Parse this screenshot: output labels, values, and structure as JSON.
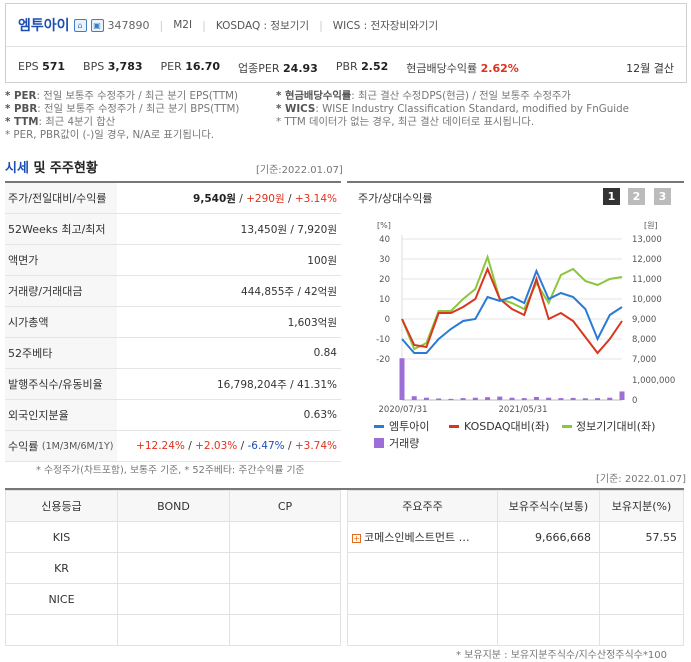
{
  "header": {
    "company_name": "엠투아이",
    "code": "347890",
    "m2i_label": "M2I",
    "market": "KOSDAQ : 정보기기",
    "wics": "WICS : 전자장비와기기",
    "eps_label": "EPS",
    "eps": "571",
    "bps_label": "BPS",
    "bps": "3,783",
    "per_label": "PER",
    "per": "16.70",
    "sector_per_label": "업종PER",
    "sector_per": "24.93",
    "pbr_label": "PBR",
    "pbr": "2.52",
    "div_label": "현금배당수익률",
    "div": "2.62%",
    "settlement": "12월 결산"
  },
  "notes": {
    "per_key": "* PER",
    "per_text": ": 전일 보통주 수정주가 / 최근 분기 EPS(TTM)",
    "pbr_key": "* PBR",
    "pbr_text": ": 전일 보통주 수정주가 / 최근 분기 BPS(TTM)",
    "ttm_key": "* TTM",
    "ttm_text": ": 최근 4분기 합산",
    "neg_text": "* PER, PBR값이 (-)일 경우, N/A로 표기됩니다.",
    "div_key": "* 현금배당수익률",
    "div_text": ": 최근 결산 수정DPS(현금) / 전일 보통주 수정주가",
    "wics_key": "* WICS",
    "wics_text": ": WISE Industry Classification Standard, modified by FnGuide",
    "ttm_none_text": "* TTM 데이터가 없는 경우, 최근 결산 데이터로 표시됩니다."
  },
  "section": {
    "title_blue": "시세",
    "title_rest": " 및 주주현황",
    "date": "[기준:2022.01.07]"
  },
  "left_table": {
    "rows": [
      {
        "label": "주가/전일대비/수익률"
      },
      {
        "label": "52Weeks 최고/최저",
        "value": "13,450원 / 7,920원"
      },
      {
        "label": "액면가",
        "value": "100원"
      },
      {
        "label": "거래량/거래대금",
        "value": "444,855주 / 42억원"
      },
      {
        "label": "시가총액",
        "value": "1,603억원"
      },
      {
        "label": "52주베타",
        "value": "0.84"
      },
      {
        "label": "발행주식수/유동비율",
        "value": "16,798,204주 / 41.31%"
      },
      {
        "label": "외국인지분율",
        "value": "0.63%"
      },
      {
        "label": "수익률",
        "label_sub": "(1M/3M/6M/1Y)"
      }
    ],
    "price": "9,540원",
    "change": "+290원",
    "change_pct": "+3.14%",
    "ret_1m": "+12.24%",
    "ret_3m": "+2.03%",
    "ret_6m": "-6.47%",
    "ret_1y": "+3.74%",
    "footnote": "* 수정주가(차트포함), 보통주 기준, * 52주베타: 주간수익률 기준"
  },
  "chart": {
    "title": "주가/상대수익률",
    "periods": [
      "1",
      "2",
      "3"
    ],
    "left_unit": "[%]",
    "right_unit": "[원]",
    "left_ticks": [
      "40",
      "30",
      "20",
      "10",
      "0",
      "-10",
      "-20"
    ],
    "right_ticks": [
      "13,000",
      "12,000",
      "11,000",
      "10,000",
      "9,000",
      "8,000",
      "7,000"
    ],
    "volume_ticks": [
      "1,000,000",
      "0"
    ],
    "x_labels": [
      "2020/07/31",
      "2021/05/31"
    ],
    "legend": {
      "s1": "엠투아이",
      "s2": "KOSDAQ대비(좌)",
      "s3": "정보기기대비(좌)",
      "s4": "거래량"
    },
    "colors": {
      "s1": "#2a7bd6",
      "s2": "#d9361f",
      "s3": "#8cc63f",
      "s4": "#9d6fd6"
    }
  },
  "chart_data": {
    "type": "line",
    "series": [
      {
        "name": "엠투아이",
        "values": [
          -10,
          -17,
          -17,
          -10,
          -5,
          -1,
          0,
          11,
          9,
          11,
          8,
          24,
          10,
          13,
          11,
          5,
          -10,
          2,
          6
        ]
      },
      {
        "name": "KOSDAQ대비(좌)",
        "values": [
          0,
          -13,
          -14,
          3,
          3,
          6,
          10,
          25,
          10,
          5,
          2,
          20,
          0,
          3,
          -1,
          -9,
          -17,
          -10,
          -1
        ]
      },
      {
        "name": "정보기기대비(좌)",
        "values": [
          0,
          -15,
          -12,
          4,
          4,
          10,
          15,
          31,
          10,
          8,
          5,
          18,
          8,
          22,
          25,
          19,
          17,
          20,
          21
        ]
      },
      {
        "name": "거래량",
        "values": [
          2200000,
          200000,
          120000,
          80000,
          60000,
          100000,
          120000,
          150000,
          180000,
          120000,
          100000,
          160000,
          120000,
          100000,
          110000,
          90000,
          100000,
          120000,
          450000
        ]
      }
    ],
    "ylim_left": [
      -20,
      40
    ],
    "ylim_right": [
      7000,
      13000
    ]
  },
  "credit": {
    "date": "[기준: 2022.01.07]",
    "headers": [
      "신용등급",
      "BOND",
      "CP"
    ],
    "rows": [
      "KIS",
      "KR",
      "NICE"
    ]
  },
  "holders": {
    "headers": [
      "주요주주",
      "보유주식수(보통)",
      "보유지분(%)"
    ],
    "row": {
      "name": "코메스인베스트먼트 …",
      "shares": "9,666,668",
      "pct": "57.55"
    },
    "footnote": "* 보유지분 : 보유지분주식수/지수산정주식수*100"
  }
}
